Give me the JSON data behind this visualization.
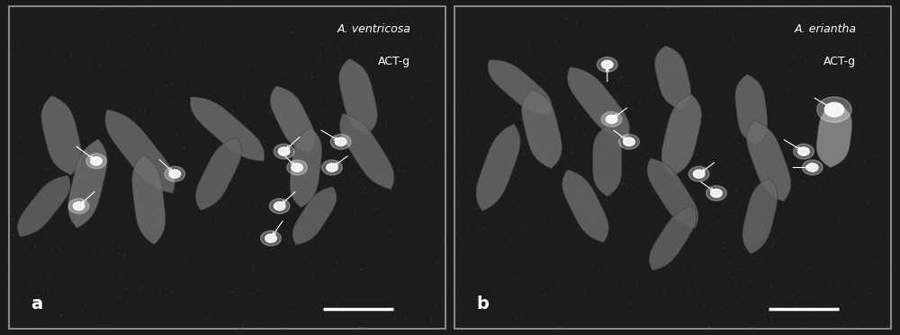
{
  "fig_width": 10.0,
  "fig_height": 3.73,
  "dpi": 100,
  "bg_color": "#1a1a1a",
  "panel_a": {
    "label": "a",
    "title_line1": "A. ventricosa",
    "title_line2": "ACT-g",
    "xlim": [
      0,
      1
    ],
    "ylim": [
      0,
      1
    ]
  },
  "panel_b": {
    "label": "b",
    "title_line1": "A. eriantha",
    "title_line2": "ACT-g",
    "xlim": [
      0,
      1
    ],
    "ylim": [
      0,
      1
    ]
  },
  "border_color": "#888888",
  "label_color": "#ffffff",
  "title_color": "#ffffff",
  "scale_bar_color": "#ffffff",
  "chromosome_color_dark": "#555555",
  "chromosome_color_mid": "#888888",
  "chromosome_color_light": "#aaaaaa",
  "bright_spot_color": "#ffffff",
  "noise_color": "#333333"
}
